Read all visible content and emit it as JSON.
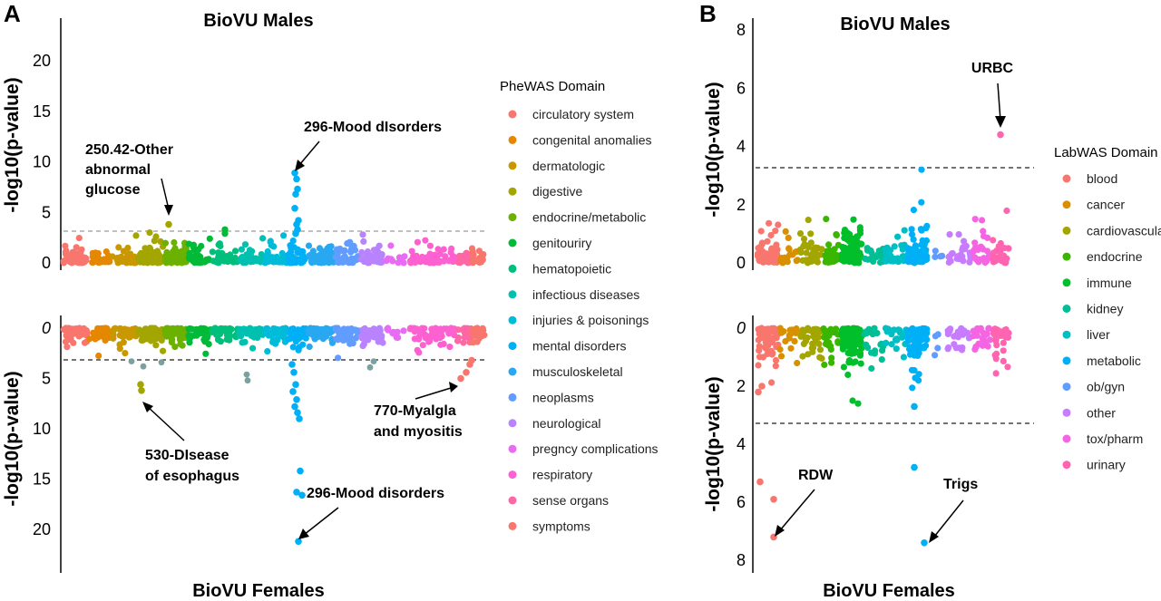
{
  "panels": [
    {
      "letter": "A",
      "top_title": "BioVU Males",
      "bottom_title": "BioVU Females",
      "ylabel": "-log10(p-value)",
      "legend_title": "PheWAS Domain",
      "domains": [
        {
          "name": "circulatory system",
          "color": "#F8766D"
        },
        {
          "name": "congenital anomalies",
          "color": "#E58700"
        },
        {
          "name": "dermatologic",
          "color": "#C99800"
        },
        {
          "name": "digestive",
          "color": "#A3A500"
        },
        {
          "name": "endocrine/metabolic",
          "color": "#6BB100"
        },
        {
          "name": "genitouriry",
          "color": "#00BA38"
        },
        {
          "name": "hematopoietic",
          "color": "#00BF7D"
        },
        {
          "name": "infectious diseases",
          "color": "#00C0AF"
        },
        {
          "name": "injuries & poisonings",
          "color": "#00BCD8"
        },
        {
          "name": "mental disorders",
          "color": "#00B0F6"
        },
        {
          "name": "musculoskeletal",
          "color": "#28A8F0"
        },
        {
          "name": "neoplasms",
          "color": "#619CFF"
        },
        {
          "name": "neurological",
          "color": "#B983FF"
        },
        {
          "name": "pregncy complications",
          "color": "#E76BF3"
        },
        {
          "name": "respiratory",
          "color": "#FD61D1"
        },
        {
          "name": "sense organs",
          "color": "#FF67A4"
        },
        {
          "name": "symptoms",
          "color": "#F8766D"
        }
      ],
      "top_axis": {
        "ticks": [
          0,
          5,
          10,
          15,
          20
        ],
        "ylim": [
          0,
          23
        ],
        "threshold": 3.1
      },
      "bottom_axis": {
        "ticks": [
          0,
          5,
          10,
          15,
          20
        ],
        "ylim": [
          0,
          22.5
        ],
        "threshold": 3.1
      },
      "annotations": [
        {
          "id": "a1",
          "lines": [
            "250.42-Other",
            "abnormal",
            "glucose"
          ]
        },
        {
          "id": "a2",
          "lines": [
            "296-Mood dIsorders"
          ]
        },
        {
          "id": "a3",
          "lines": [
            "530-DIsease",
            "of esophagus"
          ]
        },
        {
          "id": "a4",
          "lines": [
            "770-Myalgla",
            "and myositis"
          ]
        },
        {
          "id": "a5",
          "lines": [
            "296-Mood disorders"
          ]
        }
      ]
    },
    {
      "letter": "B",
      "top_title": "BioVU Males",
      "bottom_title": "BioVU Females",
      "ylabel": "-log10(p-value)",
      "legend_title": "LabWAS Domain",
      "domains": [
        {
          "name": "blood",
          "color": "#F8766D"
        },
        {
          "name": "cancer",
          "color": "#D89000"
        },
        {
          "name": "cardiovascular",
          "color": "#A3A500"
        },
        {
          "name": "endocrine",
          "color": "#39B600"
        },
        {
          "name": "immune",
          "color": "#00BF2B"
        },
        {
          "name": "kidney",
          "color": "#00BF96"
        },
        {
          "name": "liver",
          "color": "#00BFC4"
        },
        {
          "name": "metabolic",
          "color": "#00B0F6"
        },
        {
          "name": "ob/gyn",
          "color": "#619CFF"
        },
        {
          "name": "other",
          "color": "#C77CFF"
        },
        {
          "name": "tox/pharm",
          "color": "#F564E3"
        },
        {
          "name": "urinary",
          "color": "#FF64B0"
        }
      ],
      "top_axis": {
        "ticks": [
          0,
          2,
          4,
          6,
          8
        ],
        "ylim": [
          0,
          8.4
        ],
        "threshold": 3.3
      },
      "bottom_axis": {
        "ticks": [
          0,
          2,
          4,
          6,
          8
        ],
        "ylim": [
          0,
          8.3
        ],
        "threshold": 3.3
      },
      "annotations": [
        {
          "id": "b1",
          "lines": [
            "URBC"
          ]
        },
        {
          "id": "b2",
          "lines": [
            "RDW"
          ]
        },
        {
          "id": "b3",
          "lines": [
            "Trigs"
          ]
        }
      ]
    }
  ],
  "chart_data": [
    {
      "type": "scatter",
      "title": "BioVU Males",
      "ylabel": "-log10(p-value)",
      "ylim": [
        0,
        23
      ],
      "threshold": 3.1,
      "highlighted_points": [
        {
          "label": "250.42-Other abnormal glucose",
          "domain": "endocrine/metabolic",
          "y": 3.8
        },
        {
          "label": "296-Mood dIsorders",
          "domain": "mental disorders",
          "y": 8.9
        }
      ]
    },
    {
      "type": "scatter",
      "title": "BioVU Females",
      "ylabel": "-log10(p-value)",
      "ylim": [
        0,
        22.5
      ],
      "y_inverted": true,
      "threshold": 3.1,
      "highlighted_points": [
        {
          "label": "530-DIsease of esophagus",
          "domain": "digestive",
          "y": 6.0
        },
        {
          "label": "770-Myalgla and myositis",
          "domain": "symptoms",
          "y": 5.0
        },
        {
          "label": "296-Mood disorders",
          "domain": "mental disorders",
          "y": 21.2
        }
      ]
    },
    {
      "type": "scatter",
      "title": "BioVU Males",
      "ylabel": "-log10(p-value)",
      "ylim": [
        0,
        8.4
      ],
      "threshold": 3.3,
      "highlighted_points": [
        {
          "label": "URBC",
          "domain": "urinary",
          "y": 4.4
        }
      ]
    },
    {
      "type": "scatter",
      "title": "BioVU Females",
      "ylabel": "-log10(p-value)",
      "ylim": [
        0,
        8.3
      ],
      "y_inverted": true,
      "threshold": 3.3,
      "highlighted_points": [
        {
          "label": "RDW",
          "domain": "blood",
          "y": 7.2
        },
        {
          "label": "Trigs",
          "domain": "metabolic",
          "y": 7.4
        }
      ]
    }
  ]
}
